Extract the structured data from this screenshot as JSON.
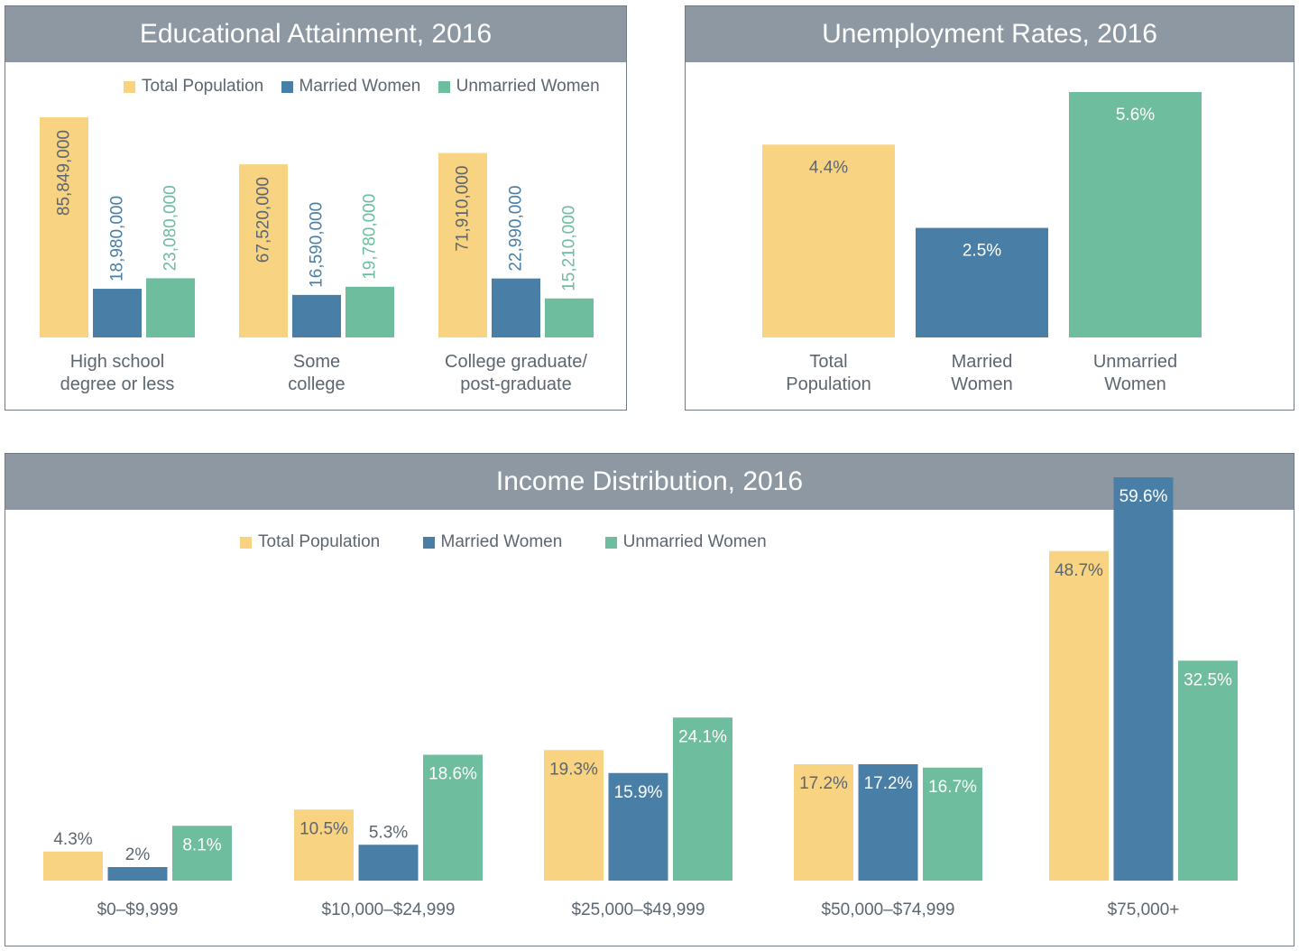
{
  "colors": {
    "total": "#f7d382",
    "married": "#497fa6",
    "unmarried": "#6ebd9e",
    "header": "#8e98a3",
    "text": "#5d6670"
  },
  "chart_data": [
    {
      "id": "education",
      "type": "bar",
      "title": "Educational Attainment, 2016",
      "categories": [
        "High school\ndegree or less",
        "Some\ncollege",
        "College graduate/\npost-graduate"
      ],
      "series": [
        {
          "name": "Total Population",
          "key": "total",
          "values": [
            85849000,
            67520000,
            71910000
          ],
          "labels": [
            "85,849,000",
            "67,520,000",
            "71,910,000"
          ]
        },
        {
          "name": "Married Women",
          "key": "married",
          "values": [
            18980000,
            16590000,
            22990000
          ],
          "labels": [
            "18,980,000",
            "16,590,000",
            "22,990,000"
          ]
        },
        {
          "name": "Unmarried Women",
          "key": "unmarried",
          "values": [
            23080000,
            19780000,
            15210000
          ],
          "labels": [
            "23,080,000",
            "19,780,000",
            "15,210,000"
          ]
        }
      ],
      "legend": "top",
      "grid": false
    },
    {
      "id": "unemployment",
      "type": "bar",
      "title": "Unemployment Rates, 2016",
      "categories": [
        "Total\nPopulation",
        "Married\nWomen",
        "Unmarried\nWomen"
      ],
      "values": [
        4.4,
        2.5,
        5.6
      ],
      "labels": [
        "4.4%",
        "2.5%",
        "5.6%"
      ],
      "grid": false
    },
    {
      "id": "income",
      "type": "bar",
      "title": "Income Distribution, 2016",
      "categories": [
        "$0–$9,999",
        "$10,000–$24,999",
        "$25,000–$49,999",
        "$50,000–$74,999",
        "$75,000+"
      ],
      "series": [
        {
          "name": "Total Population",
          "key": "total",
          "values": [
            4.3,
            10.5,
            19.3,
            17.2,
            48.7
          ],
          "labels": [
            "4.3%",
            "10.5%",
            "19.3%",
            "17.2%",
            "48.7%"
          ]
        },
        {
          "name": "Married Women",
          "key": "married",
          "values": [
            2,
            5.3,
            15.9,
            17.2,
            59.6
          ],
          "labels": [
            "2%",
            "5.3%",
            "15.9%",
            "17.2%",
            "59.6%"
          ]
        },
        {
          "name": "Unmarried Women",
          "key": "unmarried",
          "values": [
            8.1,
            18.6,
            24.1,
            16.7,
            32.5
          ],
          "labels": [
            "8.1%",
            "18.6%",
            "24.1%",
            "16.7%",
            "32.5%"
          ]
        }
      ],
      "legend": "top",
      "grid": false
    }
  ]
}
